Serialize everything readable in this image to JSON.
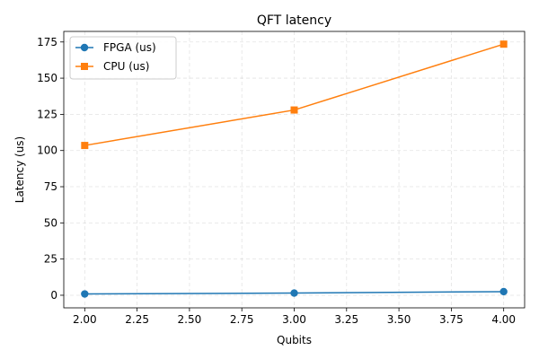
{
  "chart_data": {
    "type": "line",
    "title": "QFT latency",
    "xlabel": "Qubits",
    "ylabel": "Latency (us)",
    "x": [
      2,
      3,
      4
    ],
    "xlim": [
      1.9,
      4.1
    ],
    "ylim": [
      -8.7,
      182.3
    ],
    "xticks": [
      2.0,
      2.25,
      2.5,
      2.75,
      3.0,
      3.25,
      3.5,
      3.75,
      4.0
    ],
    "xtick_labels": [
      "2.00",
      "2.25",
      "2.50",
      "2.75",
      "3.00",
      "3.25",
      "3.50",
      "3.75",
      "4.00"
    ],
    "yticks": [
      0,
      25,
      50,
      75,
      100,
      125,
      150,
      175
    ],
    "ytick_labels": [
      "0",
      "25",
      "50",
      "75",
      "100",
      "125",
      "150",
      "175"
    ],
    "grid": true,
    "legend_position": "upper-left",
    "series": [
      {
        "name": "FPGA (us)",
        "values": [
          0.9,
          1.5,
          2.5
        ],
        "color": "#1f77b4",
        "marker": "circle"
      },
      {
        "name": "CPU (us)",
        "values": [
          103.5,
          128.0,
          173.5
        ],
        "color": "#ff7f0e",
        "marker": "square"
      }
    ]
  }
}
